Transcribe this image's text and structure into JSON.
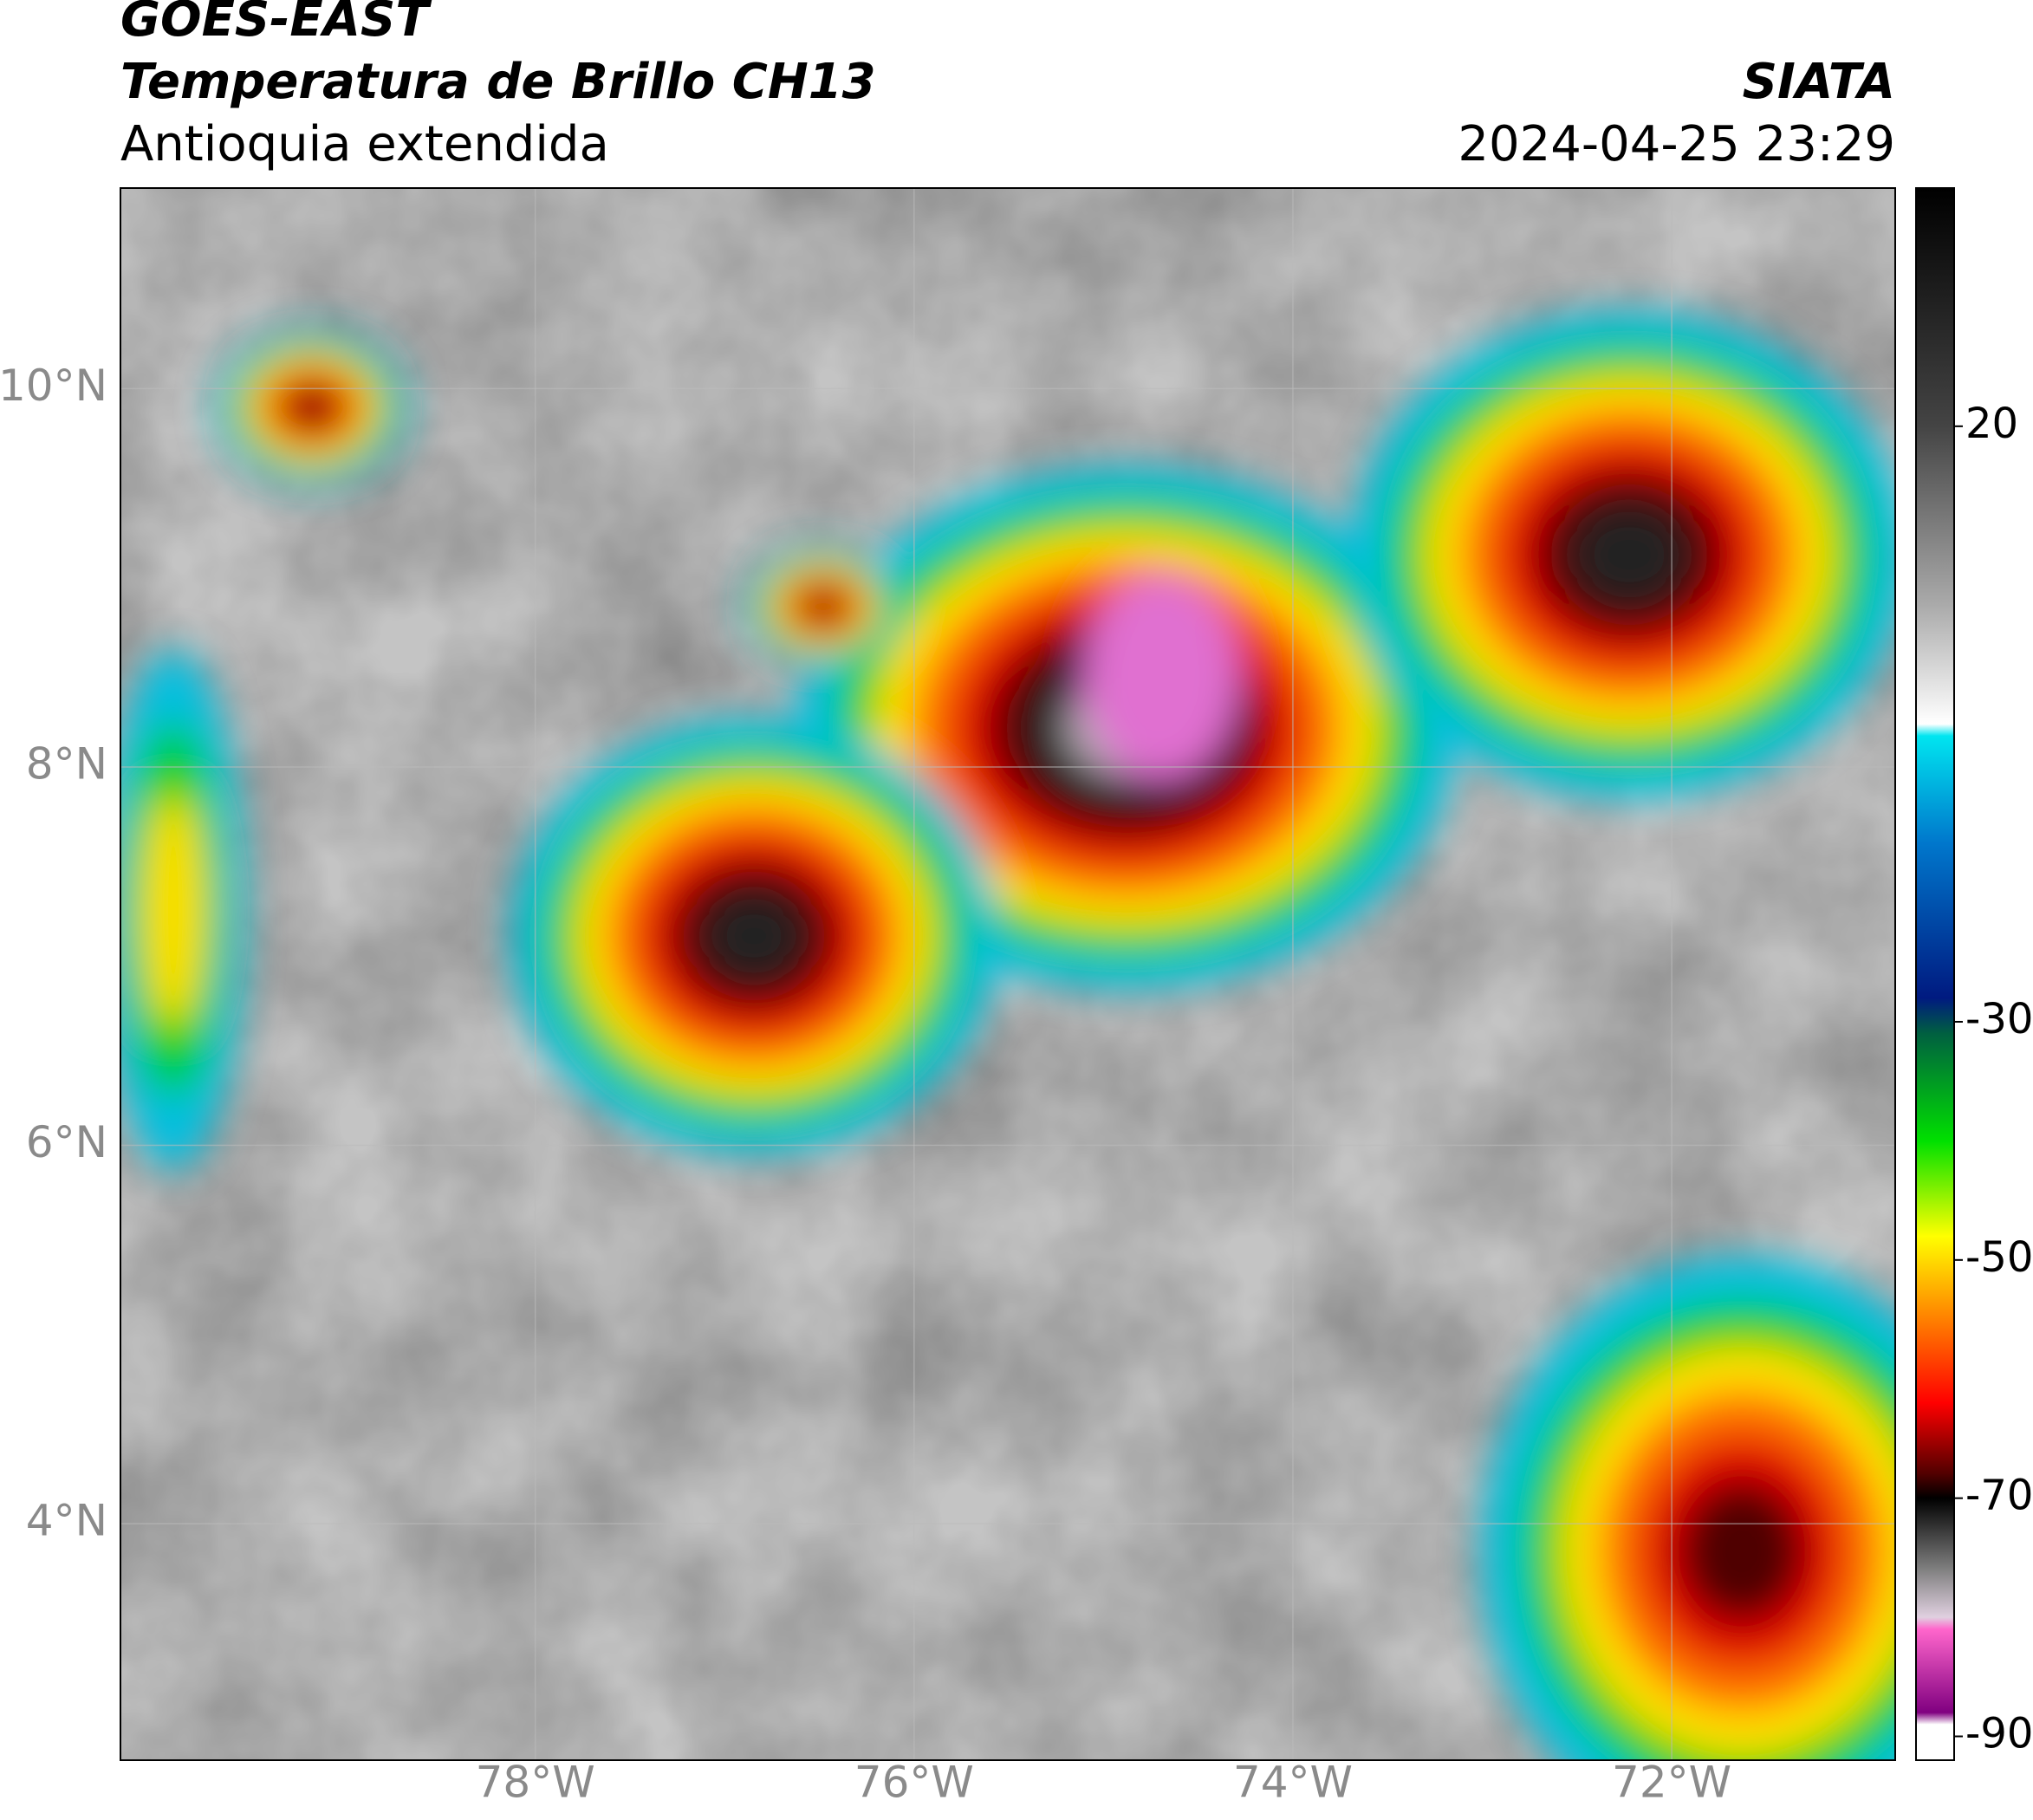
{
  "header": {
    "title_line1": "GOES-EAST",
    "title_line2": "Temperatura de Brillo CH13",
    "subtitle": "Antioquia extendida",
    "source": "SIATA",
    "datetime": "2024-04-25 23:29"
  },
  "map": {
    "lon_range": [
      -80.19,
      -70.82
    ],
    "lat_range": [
      2.75,
      11.06
    ],
    "lon_ticks": [
      {
        "value": -78,
        "label": "78°W"
      },
      {
        "value": -76,
        "label": "76°W"
      },
      {
        "value": -74,
        "label": "74°W"
      },
      {
        "value": -72,
        "label": "72°W"
      }
    ],
    "lat_ticks": [
      {
        "value": 10,
        "label": "10°N"
      },
      {
        "value": 8,
        "label": "8°N"
      },
      {
        "value": 6,
        "label": "6°N"
      },
      {
        "value": 4,
        "label": "4°N"
      }
    ],
    "grid": true
  },
  "colorbar": {
    "range": [
      -92,
      40
    ],
    "ticks": [
      20,
      -30,
      -50,
      -70,
      -90
    ],
    "colormap": [
      {
        "value": 40,
        "color": "#000000"
      },
      {
        "value": 20,
        "color": "#444444"
      },
      {
        "value": 5,
        "color": "#aaaaaa"
      },
      {
        "value": -5,
        "color": "#ffffff"
      },
      {
        "value": -6,
        "color": "#00e5f0"
      },
      {
        "value": -15,
        "color": "#0077cc"
      },
      {
        "value": -28,
        "color": "#001a80"
      },
      {
        "value": -31,
        "color": "#006040"
      },
      {
        "value": -40,
        "color": "#00e000"
      },
      {
        "value": -48,
        "color": "#ffff00"
      },
      {
        "value": -55,
        "color": "#ff8000"
      },
      {
        "value": -62,
        "color": "#ff0000"
      },
      {
        "value": -68,
        "color": "#500000"
      },
      {
        "value": -70,
        "color": "#000000"
      },
      {
        "value": -76,
        "color": "#808080"
      },
      {
        "value": -80,
        "color": "#e0d0e0"
      },
      {
        "value": -81,
        "color": "#ff66cc"
      },
      {
        "value": -88,
        "color": "#800080"
      },
      {
        "value": -89,
        "color": "#ffffff"
      },
      {
        "value": -92,
        "color": "#ffffff"
      }
    ]
  }
}
